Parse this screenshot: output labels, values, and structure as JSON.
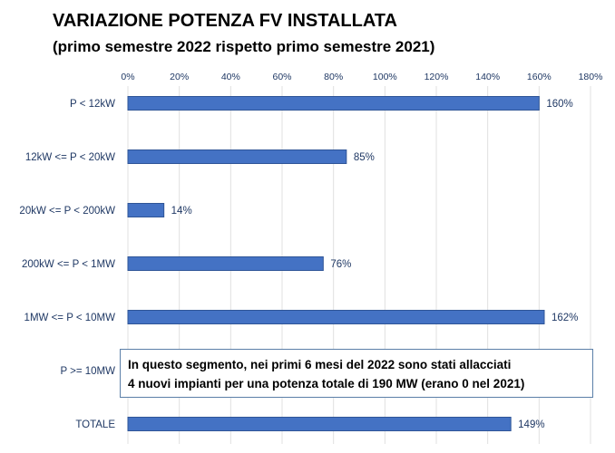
{
  "title": "VARIAZIONE POTENZA FV INSTALLATA",
  "subtitle": "(primo semestre 2022 rispetto primo semestre 2021)",
  "annotation": {
    "line1": "In questo segmento, nei primi 6 mesi del 2022 sono stati allacciati",
    "line2": "4 nuovi impianti per una potenza totale di 190 MW (erano 0 nel 2021)"
  },
  "colors": {
    "bar": "#4472c4",
    "bar_edge": "#2f5597",
    "tick_text": "#1f3864",
    "grid": "#e0e0e0"
  },
  "chart_data": {
    "type": "bar",
    "orientation": "horizontal",
    "title": "VARIAZIONE POTENZA FV INSTALLATA",
    "subtitle": "(primo semestre 2022 rispetto primo semestre 2021)",
    "categories": [
      "P < 12kW",
      "12kW <= P < 20kW",
      "20kW <= P < 200kW",
      "200kW <= P < 1MW",
      "1MW <= P < 10MW",
      "P >= 10MW",
      "TOTALE"
    ],
    "values": [
      160,
      85,
      14,
      76,
      162,
      null,
      149
    ],
    "data_labels": [
      "160%",
      "85%",
      "14%",
      "76%",
      "162%",
      "",
      "149%"
    ],
    "xlim": [
      0,
      180
    ],
    "xticks": [
      0,
      20,
      40,
      60,
      80,
      100,
      120,
      140,
      160,
      180
    ],
    "xtick_labels": [
      "0%",
      "20%",
      "40%",
      "60%",
      "80%",
      "100%",
      "120%",
      "140%",
      "160%",
      "180%"
    ],
    "x_axis_position": "top",
    "xlabel": "",
    "ylabel": "",
    "grid": true,
    "legend": "none"
  }
}
